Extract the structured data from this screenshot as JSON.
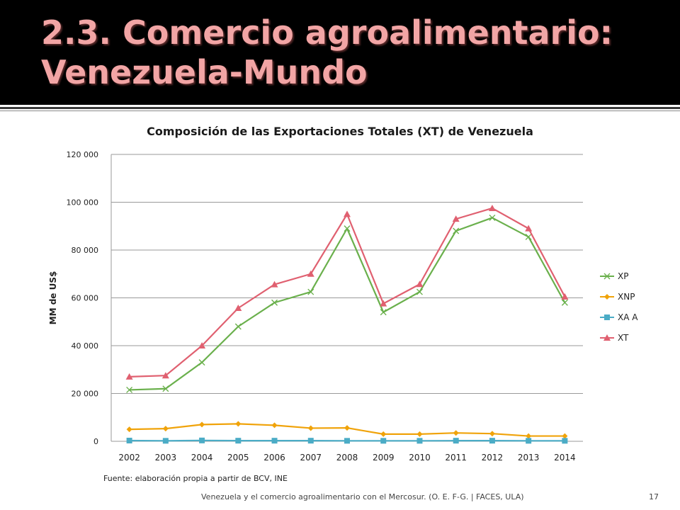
{
  "slide": {
    "title": "2.3. Comercio agroalimentario: Venezuela-Mundo",
    "source": "Fuente: elaboración propia a partir de BCV, INE",
    "footer": "Venezuela y el comercio agroalimentario con el Mercosur. (O. E. F-G. | FACES, ULA)",
    "page_number": "17"
  },
  "colors": {
    "header_bg": "#000000",
    "title_text": "#f2a5a5",
    "XP": "#6ab04c",
    "XNP": "#f0a30a",
    "XAA": "#4bacc6",
    "XT": "#e06070"
  },
  "chart_data": {
    "type": "line",
    "title": "Composición de las Exportaciones Totales (XT) de Venezuela",
    "xlabel": "",
    "ylabel": "MM de US$",
    "categories": [
      "2002",
      "2003",
      "2004",
      "2005",
      "2006",
      "2007",
      "2008",
      "2009",
      "2010",
      "2011",
      "2012",
      "2013",
      "2014"
    ],
    "ylim": [
      0,
      120000
    ],
    "yticks": [
      0,
      20000,
      40000,
      60000,
      80000,
      100000,
      120000
    ],
    "ytick_labels": [
      "0",
      "20 000",
      "40 000",
      "60 000",
      "80 000",
      "100 000",
      "120 000"
    ],
    "grid": true,
    "legend_position": "right",
    "series": [
      {
        "name": "XP",
        "marker": "x",
        "color": "#6ab04c",
        "values": [
          21500,
          22000,
          33000,
          48000,
          58000,
          62500,
          89000,
          54000,
          62500,
          88000,
          93500,
          85500,
          58000
        ]
      },
      {
        "name": "XNP",
        "marker": "diamond",
        "color": "#f0a30a",
        "values": [
          5000,
          5300,
          7000,
          7300,
          6700,
          5500,
          5600,
          3000,
          3000,
          3500,
          3200,
          2200,
          2200
        ]
      },
      {
        "name": "XA A",
        "marker": "square",
        "color": "#4bacc6",
        "values": [
          300,
          200,
          350,
          250,
          250,
          250,
          200,
          200,
          200,
          250,
          250,
          200,
          200
        ]
      },
      {
        "name": "XT",
        "marker": "triangle",
        "color": "#e06070",
        "values": [
          27000,
          27500,
          40000,
          55700,
          65600,
          70000,
          95000,
          57600,
          65700,
          93000,
          97500,
          89000,
          60500
        ]
      }
    ]
  }
}
